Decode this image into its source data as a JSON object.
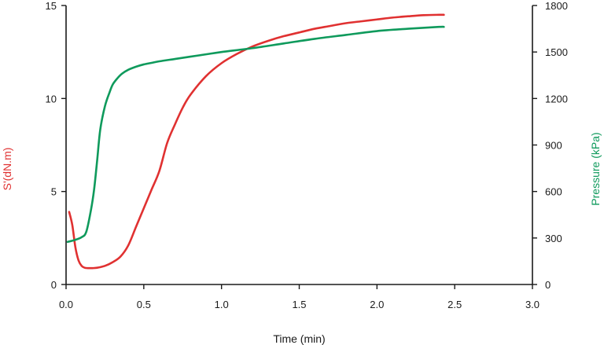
{
  "chart_data": {
    "type": "line",
    "xlabel": "Time (min)",
    "ylabel_left": "S'(dN.m)",
    "ylabel_right": "Pressure (kPa)",
    "xlim": [
      0,
      3.0
    ],
    "ylim_left": [
      0,
      15
    ],
    "ylim_right": [
      0,
      1800
    ],
    "x_ticks": [
      "0.0",
      "0.5",
      "1.0",
      "1.5",
      "2.0",
      "2.5",
      "3.0"
    ],
    "y_left_ticks": [
      "0",
      "5",
      "10",
      "15"
    ],
    "y_right_ticks": [
      "0",
      "300",
      "600",
      "900",
      "1200",
      "1500",
      "1800"
    ],
    "grid": false,
    "colors": {
      "torque": "#e03131",
      "pressure": "#0f9a5c",
      "axis": "#1a1a1a"
    },
    "series": [
      {
        "axis": "left",
        "color": "#e03131",
        "x": [
          0.02,
          0.04,
          0.06,
          0.08,
          0.1,
          0.12,
          0.14,
          0.17,
          0.2,
          0.25,
          0.3,
          0.35,
          0.4,
          0.45,
          0.5,
          0.55,
          0.6,
          0.65,
          0.7,
          0.75,
          0.8,
          0.9,
          1.0,
          1.1,
          1.2,
          1.3,
          1.4,
          1.5,
          1.6,
          1.7,
          1.8,
          1.9,
          2.0,
          2.1,
          2.2,
          2.3,
          2.4,
          2.43
        ],
        "y": [
          3.9,
          3.2,
          2.0,
          1.3,
          1.0,
          0.9,
          0.88,
          0.88,
          0.9,
          1.0,
          1.2,
          1.5,
          2.1,
          3.1,
          4.1,
          5.1,
          6.1,
          7.6,
          8.6,
          9.5,
          10.2,
          11.2,
          11.9,
          12.4,
          12.8,
          13.1,
          13.35,
          13.55,
          13.75,
          13.9,
          14.05,
          14.15,
          14.25,
          14.35,
          14.42,
          14.48,
          14.5,
          14.5
        ]
      },
      {
        "axis": "right",
        "color": "#0f9a5c",
        "x": [
          0.01,
          0.05,
          0.1,
          0.13,
          0.16,
          0.18,
          0.2,
          0.22,
          0.25,
          0.28,
          0.3,
          0.33,
          0.36,
          0.4,
          0.45,
          0.5,
          0.55,
          0.6,
          0.7,
          0.8,
          0.9,
          1.0,
          1.2,
          1.4,
          1.6,
          1.8,
          2.0,
          2.2,
          2.4,
          2.43
        ],
        "y": [
          275,
          285,
          305,
          340,
          480,
          610,
          800,
          1000,
          1150,
          1240,
          1290,
          1330,
          1360,
          1385,
          1405,
          1420,
          1430,
          1440,
          1455,
          1470,
          1485,
          1500,
          1525,
          1555,
          1585,
          1610,
          1635,
          1650,
          1662,
          1662
        ]
      }
    ]
  }
}
